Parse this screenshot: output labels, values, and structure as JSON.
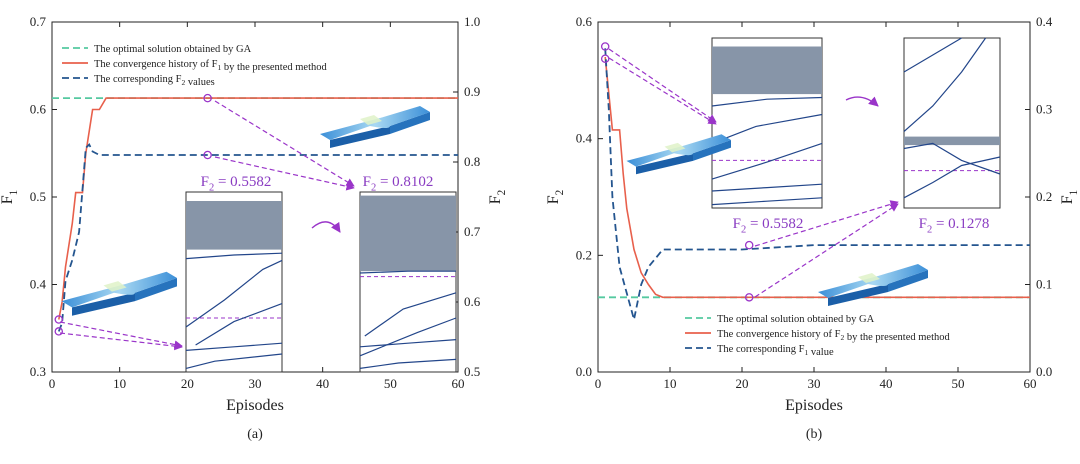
{
  "chart_data": [
    {
      "type": "line",
      "panel_label": "(a)",
      "xlabel": "Episodes",
      "ylabel_left": "F1",
      "ylabel_right": "F2",
      "xlim": [
        0,
        60
      ],
      "ylim_left": [
        0.3,
        0.7
      ],
      "ylim_right": [
        0.5,
        1.0
      ],
      "xticks": [
        0,
        10,
        20,
        30,
        40,
        50,
        60
      ],
      "yticks_left": [
        "0.3",
        "0.4",
        "0.5",
        "0.6",
        "0.7"
      ],
      "yticks_right": [
        "0.5",
        "0.6",
        "0.7",
        "0.8",
        "0.9",
        "1.0"
      ],
      "legend_position": "top-left",
      "series": [
        {
          "name": "The optimal solution obtained by GA",
          "axis": "left",
          "color": "#55c9a0",
          "dash": "dash",
          "x": [
            0,
            60
          ],
          "y": [
            0.613,
            0.613
          ]
        },
        {
          "name": "The convergence history of F1 by the presented method",
          "axis": "left",
          "color": "#e8604c",
          "dash": "solid",
          "x": [
            1,
            1.5,
            2,
            3,
            3.5,
            4.5,
            5,
            6,
            7,
            8,
            10,
            15,
            20,
            23,
            30,
            40,
            50,
            60
          ],
          "y": [
            0.36,
            0.38,
            0.42,
            0.47,
            0.505,
            0.505,
            0.55,
            0.6,
            0.6,
            0.613,
            0.613,
            0.613,
            0.613,
            0.613,
            0.613,
            0.613,
            0.613,
            0.613
          ]
        },
        {
          "name": "The corresponding F2 values",
          "axis": "right",
          "color": "#24558f",
          "dash": "dash",
          "x": [
            1,
            1.5,
            2,
            3,
            4,
            5,
            5.5,
            6,
            7,
            10,
            20,
            23,
            30,
            40,
            50,
            60
          ],
          "y": [
            0.558,
            0.57,
            0.63,
            0.66,
            0.7,
            0.82,
            0.825,
            0.815,
            0.81,
            0.81,
            0.81,
            0.81,
            0.81,
            0.81,
            0.81,
            0.81
          ]
        }
      ],
      "markers": [
        {
          "x": 1,
          "y": 0.36,
          "axis": "left"
        },
        {
          "x": 1,
          "y": 0.558,
          "axis": "right"
        },
        {
          "x": 23,
          "y": 0.613,
          "axis": "left"
        },
        {
          "x": 23,
          "y": 0.81,
          "axis": "right"
        }
      ],
      "annotations": [
        "F2 = 0.5582",
        "F2 = 0.8102"
      ]
    },
    {
      "type": "line",
      "panel_label": "(b)",
      "xlabel": "Episodes",
      "ylabel_left": "F2",
      "ylabel_right": "F1",
      "xlim": [
        0,
        60
      ],
      "ylim_left": [
        0.0,
        0.6
      ],
      "ylim_right": [
        0.0,
        0.4
      ],
      "xticks": [
        0,
        10,
        20,
        30,
        40,
        50,
        60
      ],
      "yticks_left": [
        "0.0",
        "0.2",
        "0.4",
        "0.6"
      ],
      "yticks_right": [
        "0.0",
        "0.1",
        "0.2",
        "0.3",
        "0.4"
      ],
      "legend_position": "bottom-left",
      "series": [
        {
          "name": "The optimal solution obtained by GA",
          "axis": "left",
          "color": "#55c9a0",
          "dash": "dash",
          "x": [
            0,
            60
          ],
          "y": [
            0.128,
            0.128
          ]
        },
        {
          "name": "The convergence history of F2 by the presented method",
          "axis": "left",
          "color": "#e8604c",
          "dash": "solid",
          "x": [
            1,
            2,
            3,
            3.5,
            4,
            5,
            6,
            7,
            8,
            9,
            10,
            20,
            30,
            40,
            50,
            60
          ],
          "y": [
            0.54,
            0.415,
            0.415,
            0.34,
            0.28,
            0.21,
            0.17,
            0.15,
            0.133,
            0.128,
            0.128,
            0.128,
            0.128,
            0.128,
            0.128,
            0.128
          ]
        },
        {
          "name": "The corresponding F1 value",
          "axis": "right",
          "color": "#24558f",
          "dash": "dash",
          "x": [
            1,
            1.5,
            2,
            3,
            4,
            5,
            6,
            7,
            8,
            9,
            10,
            20,
            30,
            40,
            50,
            60
          ],
          "y": [
            0.37,
            0.3,
            0.2,
            0.12,
            0.09,
            0.06,
            0.1,
            0.12,
            0.13,
            0.14,
            0.14,
            0.14,
            0.145,
            0.145,
            0.145,
            0.145
          ]
        }
      ],
      "markers": [
        {
          "x": 1,
          "y": 0.558,
          "axis": "left"
        },
        {
          "x": 1,
          "y": 0.537,
          "axis": "left"
        },
        {
          "x": 21,
          "y": 0.128,
          "axis": "left"
        },
        {
          "x": 21,
          "y": 0.145,
          "axis": "right"
        }
      ],
      "annotations": [
        "F2 = 0.5582",
        "F2 = 0.1278"
      ]
    }
  ]
}
